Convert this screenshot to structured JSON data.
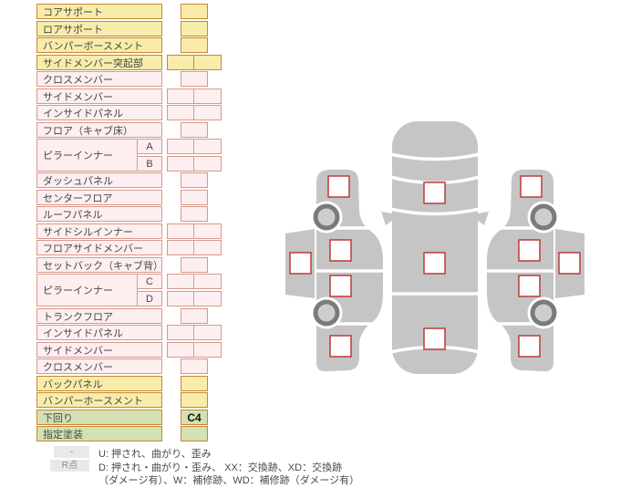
{
  "colors": {
    "yellow_fill": "#f8ecab",
    "yellow_border": "#c8872e",
    "pink_fill": "#fdeef0",
    "pink_border": "#d9998b",
    "green_fill": "#d3e1b5",
    "green_border": "#c8872e",
    "marker_border": "#bb3b38",
    "body_gray": "#c5c5c5",
    "wheel_ring": "#7b7b7b",
    "wheel_hub": "#cecece",
    "legend_badge_bg": "#e9e9e9"
  },
  "table": {
    "rows": [
      {
        "label": "コアサポート",
        "color": "yellow",
        "cells": "single"
      },
      {
        "label": "ロアサポート",
        "color": "yellow",
        "cells": "single"
      },
      {
        "label": "バンパーボースメント",
        "color": "yellow",
        "cells": "single"
      },
      {
        "label": "サイドメンバー突起部",
        "color": "yellow",
        "cells": "double"
      },
      {
        "label": "クロスメンバー",
        "color": "pink",
        "cells": "single"
      },
      {
        "label": "サイドメンバー",
        "color": "pink",
        "cells": "double"
      },
      {
        "label": "インサイドパネル",
        "color": "pink",
        "cells": "double"
      },
      {
        "label": "フロア（キャブ床）",
        "color": "pink",
        "cells": "single"
      },
      {
        "label": "ピラーインナー",
        "sub": "A",
        "color": "pink",
        "cells": "double"
      },
      {
        "label": "",
        "sub": "B",
        "color": "pink",
        "cells": "double"
      },
      {
        "label": "ダッシュパネル",
        "color": "pink",
        "cells": "single"
      },
      {
        "label": "センターフロア",
        "color": "pink",
        "cells": "single"
      },
      {
        "label": "ルーフパネル",
        "color": "pink",
        "cells": "single"
      },
      {
        "label": "サイドシルインナー",
        "color": "pink",
        "cells": "double"
      },
      {
        "label": "フロアサイドメンバー",
        "color": "pink",
        "cells": "double"
      },
      {
        "label": "セットバック（キャブ背）",
        "color": "pink",
        "cells": "single"
      },
      {
        "label": "ピラーインナー",
        "sub": "C",
        "color": "pink",
        "cells": "double"
      },
      {
        "label": "",
        "sub": "D",
        "color": "pink",
        "cells": "double"
      },
      {
        "label": "トランクフロア",
        "color": "pink",
        "cells": "single"
      },
      {
        "label": "インサイドパネル",
        "color": "pink",
        "cells": "double"
      },
      {
        "label": "サイドメンバー",
        "color": "pink",
        "cells": "double"
      },
      {
        "label": "クロスメンバー",
        "color": "pink",
        "cells": "single"
      },
      {
        "label": "バックパネル",
        "color": "yellow",
        "cells": "single"
      },
      {
        "label": "バンパーホースメント",
        "color": "yellow",
        "cells": "single"
      },
      {
        "label": "下回り",
        "color": "green",
        "cells": "single",
        "value": "C4"
      },
      {
        "label": "指定塗装",
        "color": "green",
        "cells": "single"
      }
    ]
  },
  "legend": {
    "row1_badge": "-",
    "row1_text": "U: 押され、曲がり、歪み",
    "row2_badge": "R点",
    "row2_text": "D: 押され・曲がり・歪み、 XX：交換跡、XD：交換跡",
    "row3_text": "（ダメージ有）、W：補修跡、WD：補修跡（ダメージ有）"
  },
  "diagram": {
    "views": [
      "left-side-view",
      "top-view",
      "right-side-view"
    ],
    "left_side_marker_count": 5,
    "top_view_marker_count": 3,
    "right_side_marker_count": 5
  }
}
